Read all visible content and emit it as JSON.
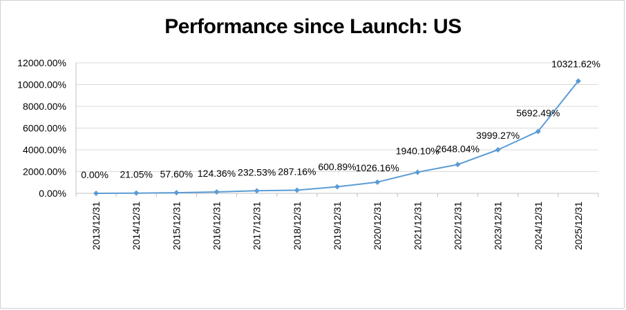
{
  "chart_data": {
    "type": "line",
    "title": "Performance since Launch: US",
    "xlabel": "",
    "ylabel": "",
    "categories": [
      "2013/12/31",
      "2014/12/31",
      "2015/12/31",
      "2016/12/31",
      "2017/12/31",
      "2018/12/31",
      "2019/12/31",
      "2020/12/31",
      "2021/12/31",
      "2022/12/31",
      "2023/12/31",
      "2024/12/31",
      "2025/12/31"
    ],
    "values": [
      0.0,
      21.05,
      57.6,
      124.36,
      232.53,
      287.16,
      600.89,
      1026.16,
      1940.1,
      2648.04,
      3999.27,
      5692.49,
      10321.62
    ],
    "data_labels": [
      "0.00%",
      "21.05%",
      "57.60%",
      "124.36%",
      "232.53%",
      "287.16%",
      "600.89%",
      "1026.16%",
      "1940.10%",
      "2648.04%",
      "3999.27%",
      "5692.49%",
      "10321.62%"
    ],
    "y_ticks": [
      "0.00%",
      "2000.00%",
      "4000.00%",
      "6000.00%",
      "8000.00%",
      "10000.00%",
      "12000.00%"
    ],
    "ylim": [
      0,
      12000
    ],
    "grid": true,
    "legend": "none",
    "line_color": "#5b9bd5"
  }
}
